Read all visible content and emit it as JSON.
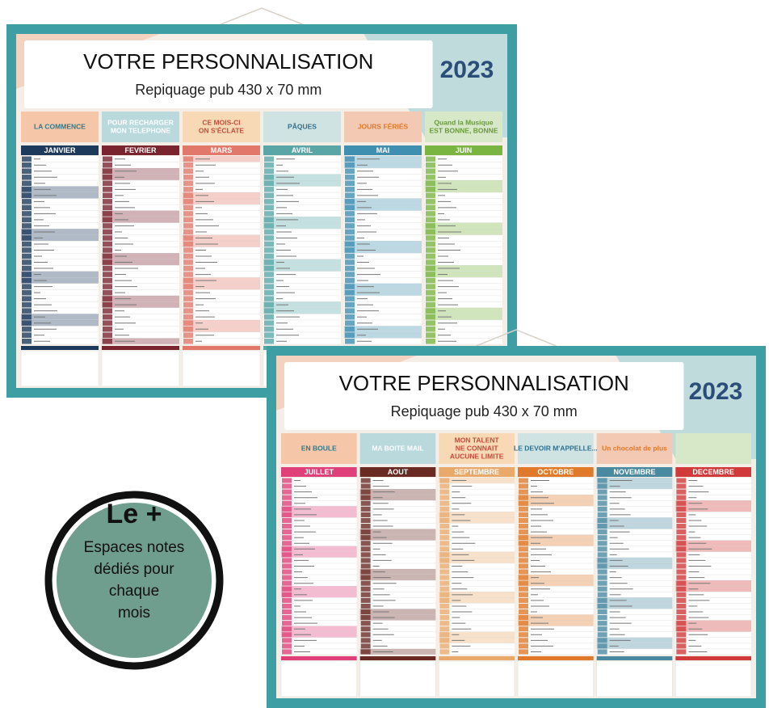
{
  "calendar_1": {
    "header_title": "VOTRE PERSONNALISATION",
    "header_subtitle": "Repiquage pub 430 x 70 mm",
    "year": "2023",
    "banners": [
      [
        "LA COMMENCE"
      ],
      [
        "POUR RECHARGER",
        "MON TELEPHONE"
      ],
      [
        "CE MOIS-CI",
        "ON S'ÉCLATE"
      ],
      [
        "PÂQUES"
      ],
      [
        "JOURS FÉRIÉS"
      ],
      [
        "Quand la Musique",
        "EST BONNE, BONNE"
      ]
    ],
    "months": [
      "JANVIER",
      "FEVRIER",
      "MARS",
      "AVRIL",
      "MAI",
      "JUIN"
    ]
  },
  "calendar_2": {
    "header_title": "VOTRE PERSONNALISATION",
    "header_subtitle": "Repiquage pub 430 x 70 mm",
    "year": "2023",
    "banners": [
      [
        "EN BOULE"
      ],
      [
        "MA BOITE MAIL"
      ],
      [
        "MON TALENT",
        "NE CONNAIT",
        "AUCUNE LIMITE"
      ],
      [
        "LE DEVOIR M'APPELLE..."
      ],
      [
        "Un chocolat de plus"
      ]
    ],
    "months": [
      "JUILLET",
      "AOUT",
      "SEPTEMBRE",
      "OCTOBRE",
      "NOVEMBRE",
      "DECEMBRE"
    ]
  },
  "badge": {
    "title": "Le +",
    "lines": [
      "Espaces notes",
      "dédiés pour",
      "chaque",
      "mois"
    ]
  }
}
